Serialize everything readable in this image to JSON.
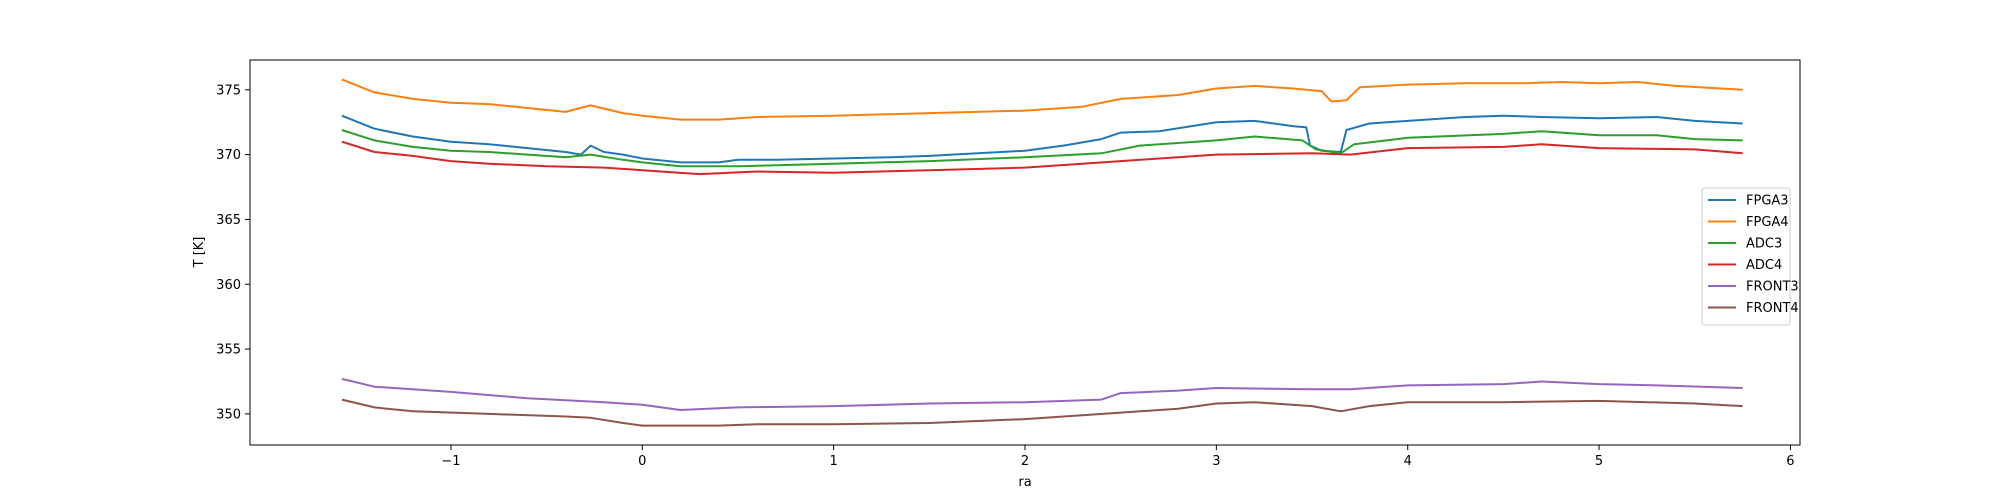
{
  "chart_data": {
    "type": "line",
    "title": "",
    "xlabel": "ra",
    "ylabel": "T [K]",
    "xlim": [
      -2.05,
      6.05
    ],
    "ylim": [
      347.6,
      377.3
    ],
    "xticks": [
      -1,
      0,
      1,
      2,
      3,
      4,
      5,
      6
    ],
    "yticks": [
      350,
      355,
      360,
      365,
      370,
      375
    ],
    "grid": false,
    "legend_position": "center-right",
    "series": [
      {
        "name": "FPGA3",
        "color": "#1f77b4",
        "points": [
          [
            -1.57,
            373.0
          ],
          [
            -1.4,
            372.0
          ],
          [
            -1.2,
            371.4
          ],
          [
            -1.0,
            371.0
          ],
          [
            -0.8,
            370.8
          ],
          [
            -0.6,
            370.5
          ],
          [
            -0.4,
            370.2
          ],
          [
            -0.32,
            370.0
          ],
          [
            -0.27,
            370.7
          ],
          [
            -0.2,
            370.2
          ],
          [
            -0.1,
            370.0
          ],
          [
            0.0,
            369.7
          ],
          [
            0.2,
            369.4
          ],
          [
            0.4,
            369.4
          ],
          [
            0.5,
            369.6
          ],
          [
            0.7,
            369.6
          ],
          [
            1.0,
            369.7
          ],
          [
            1.3,
            369.8
          ],
          [
            1.5,
            369.9
          ],
          [
            2.0,
            370.3
          ],
          [
            2.2,
            370.7
          ],
          [
            2.4,
            371.2
          ],
          [
            2.5,
            371.7
          ],
          [
            2.7,
            371.8
          ],
          [
            3.0,
            372.5
          ],
          [
            3.2,
            372.6
          ],
          [
            3.4,
            372.2
          ],
          [
            3.47,
            372.1
          ],
          [
            3.49,
            370.7
          ],
          [
            3.55,
            370.3
          ],
          [
            3.65,
            370.2
          ],
          [
            3.68,
            371.9
          ],
          [
            3.8,
            372.4
          ],
          [
            4.0,
            372.6
          ],
          [
            4.3,
            372.9
          ],
          [
            4.5,
            373.0
          ],
          [
            4.7,
            372.9
          ],
          [
            5.0,
            372.8
          ],
          [
            5.3,
            372.9
          ],
          [
            5.5,
            372.6
          ],
          [
            5.75,
            372.4
          ]
        ]
      },
      {
        "name": "FPGA4",
        "color": "#ff7f0e",
        "points": [
          [
            -1.57,
            375.8
          ],
          [
            -1.4,
            374.8
          ],
          [
            -1.2,
            374.3
          ],
          [
            -1.0,
            374.0
          ],
          [
            -0.8,
            373.9
          ],
          [
            -0.6,
            373.6
          ],
          [
            -0.4,
            373.3
          ],
          [
            -0.27,
            373.8
          ],
          [
            -0.1,
            373.2
          ],
          [
            0.0,
            373.0
          ],
          [
            0.2,
            372.7
          ],
          [
            0.4,
            372.7
          ],
          [
            0.6,
            372.9
          ],
          [
            1.0,
            373.0
          ],
          [
            1.5,
            373.2
          ],
          [
            2.0,
            373.4
          ],
          [
            2.3,
            373.7
          ],
          [
            2.5,
            374.3
          ],
          [
            2.8,
            374.6
          ],
          [
            3.0,
            375.1
          ],
          [
            3.2,
            375.3
          ],
          [
            3.4,
            375.1
          ],
          [
            3.55,
            374.9
          ],
          [
            3.6,
            374.1
          ],
          [
            3.68,
            374.2
          ],
          [
            3.75,
            375.2
          ],
          [
            4.0,
            375.4
          ],
          [
            4.3,
            375.5
          ],
          [
            4.6,
            375.5
          ],
          [
            4.8,
            375.6
          ],
          [
            5.0,
            375.5
          ],
          [
            5.2,
            375.6
          ],
          [
            5.4,
            375.3
          ],
          [
            5.75,
            375.0
          ]
        ]
      },
      {
        "name": "ADC3",
        "color": "#2ca02c",
        "points": [
          [
            -1.57,
            371.9
          ],
          [
            -1.4,
            371.1
          ],
          [
            -1.2,
            370.6
          ],
          [
            -1.0,
            370.3
          ],
          [
            -0.8,
            370.2
          ],
          [
            -0.6,
            370.0
          ],
          [
            -0.4,
            369.8
          ],
          [
            -0.27,
            370.0
          ],
          [
            -0.1,
            369.6
          ],
          [
            0.0,
            369.4
          ],
          [
            0.2,
            369.1
          ],
          [
            0.5,
            369.1
          ],
          [
            1.0,
            369.3
          ],
          [
            1.5,
            369.5
          ],
          [
            2.0,
            369.8
          ],
          [
            2.4,
            370.1
          ],
          [
            2.6,
            370.7
          ],
          [
            3.0,
            371.1
          ],
          [
            3.2,
            371.4
          ],
          [
            3.45,
            371.1
          ],
          [
            3.52,
            370.4
          ],
          [
            3.65,
            370.1
          ],
          [
            3.72,
            370.8
          ],
          [
            4.0,
            371.3
          ],
          [
            4.5,
            371.6
          ],
          [
            4.7,
            371.8
          ],
          [
            5.0,
            371.5
          ],
          [
            5.3,
            371.5
          ],
          [
            5.5,
            371.2
          ],
          [
            5.75,
            371.1
          ]
        ]
      },
      {
        "name": "ADC4",
        "color": "#d62728",
        "points": [
          [
            -1.57,
            371.0
          ],
          [
            -1.4,
            370.2
          ],
          [
            -1.2,
            369.9
          ],
          [
            -1.0,
            369.5
          ],
          [
            -0.8,
            369.3
          ],
          [
            -0.5,
            369.1
          ],
          [
            -0.2,
            369.0
          ],
          [
            0.0,
            368.8
          ],
          [
            0.3,
            368.5
          ],
          [
            0.6,
            368.7
          ],
          [
            1.0,
            368.6
          ],
          [
            1.5,
            368.8
          ],
          [
            2.0,
            369.0
          ],
          [
            2.5,
            369.5
          ],
          [
            3.0,
            370.0
          ],
          [
            3.5,
            370.1
          ],
          [
            3.7,
            370.0
          ],
          [
            4.0,
            370.5
          ],
          [
            4.5,
            370.6
          ],
          [
            4.7,
            370.8
          ],
          [
            5.0,
            370.5
          ],
          [
            5.5,
            370.4
          ],
          [
            5.75,
            370.1
          ]
        ]
      },
      {
        "name": "FRONT3",
        "color": "#9467bd",
        "points": [
          [
            -1.57,
            352.7
          ],
          [
            -1.4,
            352.1
          ],
          [
            -1.0,
            351.7
          ],
          [
            -0.6,
            351.2
          ],
          [
            -0.2,
            350.9
          ],
          [
            0.0,
            350.7
          ],
          [
            0.2,
            350.3
          ],
          [
            0.5,
            350.5
          ],
          [
            1.0,
            350.6
          ],
          [
            1.5,
            350.8
          ],
          [
            2.0,
            350.9
          ],
          [
            2.4,
            351.1
          ],
          [
            2.5,
            351.6
          ],
          [
            2.8,
            351.8
          ],
          [
            3.0,
            352.0
          ],
          [
            3.5,
            351.9
          ],
          [
            3.7,
            351.9
          ],
          [
            4.0,
            352.2
          ],
          [
            4.5,
            352.3
          ],
          [
            4.7,
            352.5
          ],
          [
            5.0,
            352.3
          ],
          [
            5.3,
            352.2
          ],
          [
            5.75,
            352.0
          ]
        ]
      },
      {
        "name": "FRONT4",
        "color": "#8c564b",
        "points": [
          [
            -1.57,
            351.1
          ],
          [
            -1.4,
            350.5
          ],
          [
            -1.2,
            350.2
          ],
          [
            -0.8,
            350.0
          ],
          [
            -0.4,
            349.8
          ],
          [
            -0.27,
            349.7
          ],
          [
            -0.1,
            349.3
          ],
          [
            0.0,
            349.1
          ],
          [
            0.4,
            349.1
          ],
          [
            0.6,
            349.2
          ],
          [
            1.0,
            349.2
          ],
          [
            1.5,
            349.3
          ],
          [
            2.0,
            349.6
          ],
          [
            2.5,
            350.1
          ],
          [
            2.8,
            350.4
          ],
          [
            3.0,
            350.8
          ],
          [
            3.2,
            350.9
          ],
          [
            3.5,
            350.6
          ],
          [
            3.65,
            350.2
          ],
          [
            3.8,
            350.6
          ],
          [
            4.0,
            350.9
          ],
          [
            4.5,
            350.9
          ],
          [
            5.0,
            351.0
          ],
          [
            5.5,
            350.8
          ],
          [
            5.75,
            350.6
          ]
        ]
      }
    ]
  }
}
